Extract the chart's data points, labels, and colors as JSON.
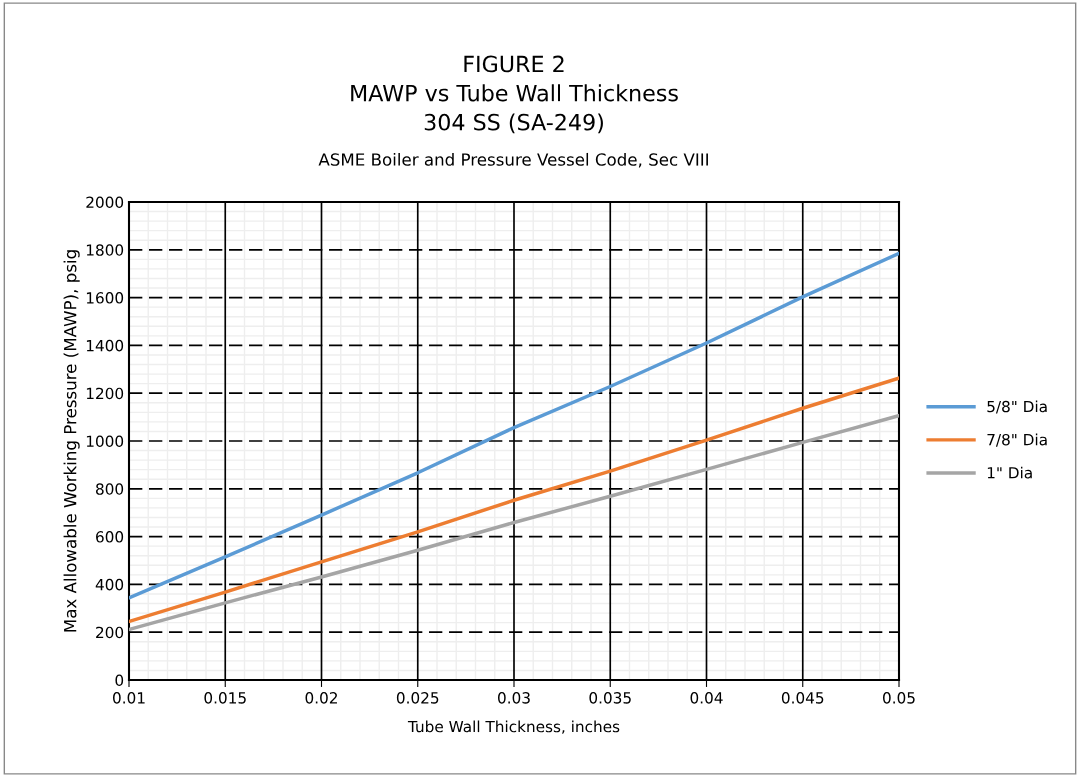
{
  "chart_data": {
    "type": "line",
    "title": "FIGURE 2\nMAWP vs Tube Wall Thickness\n304 SS (SA-249)",
    "subtitle": "ASME Boiler and Pressure Vessel Code, Sec VIII",
    "xlabel": "Tube Wall Thickness, inches",
    "ylabel": "Max Allowable Working Pressure (MAWP), psig",
    "x": [
      0.01,
      0.015,
      0.02,
      0.025,
      0.03,
      0.035,
      0.04,
      0.045,
      0.05
    ],
    "series": [
      {
        "name": "5/8\" Dia",
        "color": "#5b9bd5",
        "values": [
          344,
          515,
          690,
          867,
          1056,
          1228,
          1410,
          1603,
          1785
        ]
      },
      {
        "name": "7/8\" Dia",
        "color": "#ed7d31",
        "values": [
          245,
          368,
          494,
          620,
          752,
          874,
          1004,
          1137,
          1263
        ]
      },
      {
        "name": "1\" Dia",
        "color": "#a5a5a5",
        "values": [
          211,
          323,
          431,
          543,
          659,
          769,
          881,
          994,
          1106
        ]
      }
    ],
    "xlim": [
      0.01,
      0.05
    ],
    "xticks": [
      0.01,
      0.015,
      0.02,
      0.025,
      0.03,
      0.035,
      0.04,
      0.045,
      0.05
    ],
    "ylim": [
      0,
      2000
    ],
    "yticks": [
      0,
      200,
      400,
      600,
      800,
      1000,
      1200,
      1400,
      1600,
      1800,
      2000
    ],
    "grid": true,
    "legend": "right",
    "marker": "none",
    "line_style": "solid"
  }
}
